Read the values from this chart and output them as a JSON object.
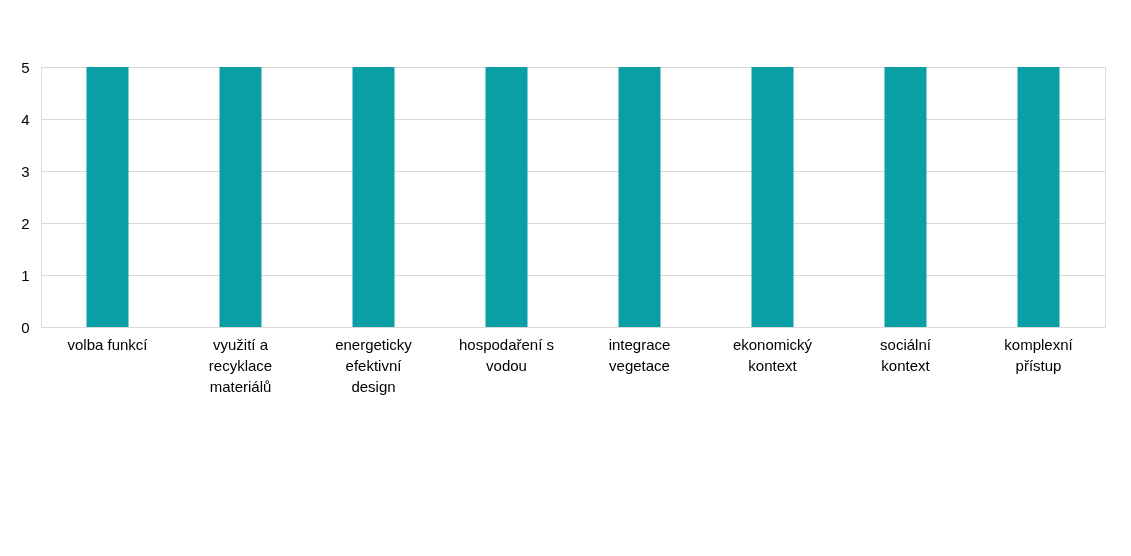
{
  "chart_data": {
    "type": "bar",
    "categories": [
      "volba funkcí",
      "využití a recyklace materiálů",
      "energeticky efektivní design",
      "hospodaření s vodou",
      "integrace vegetace",
      "ekonomický kontext",
      "sociální kontext",
      "komplexní přístup"
    ],
    "values": [
      5,
      5,
      5,
      5,
      5,
      5,
      5,
      5
    ],
    "color": "#0a9ea5",
    "ylim": [
      0,
      5
    ],
    "yticks": [
      0,
      1,
      2,
      3,
      4,
      5
    ],
    "grid": "y"
  }
}
